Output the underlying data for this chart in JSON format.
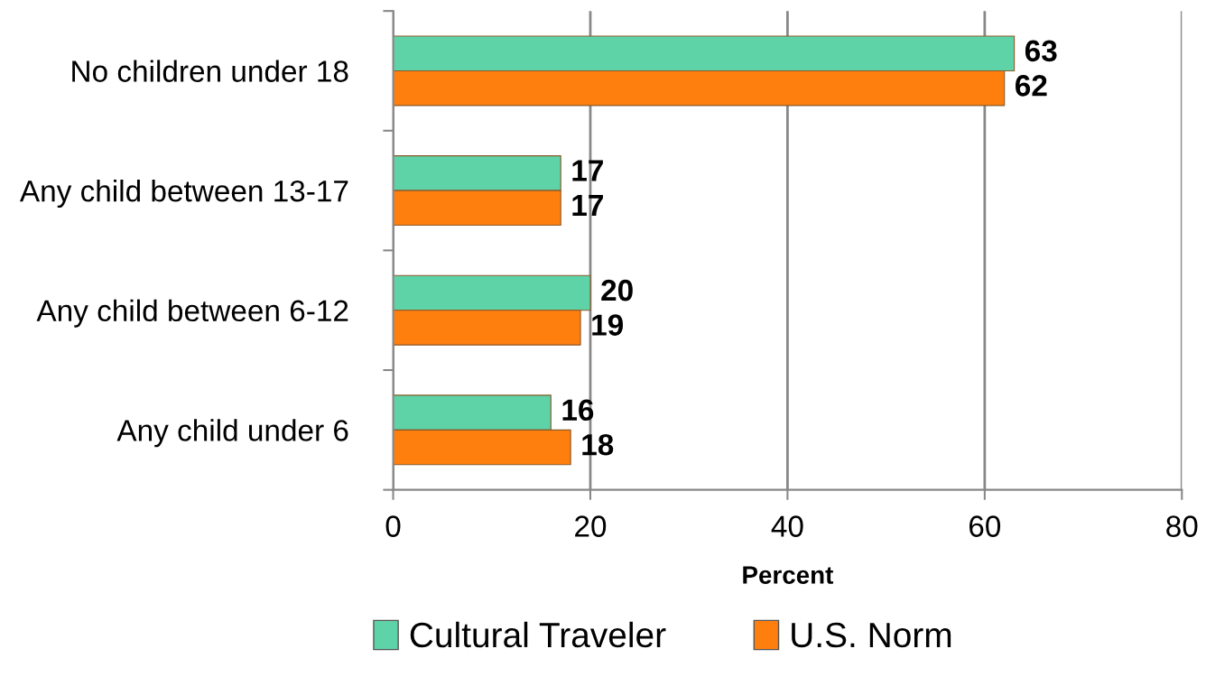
{
  "chart_data": {
    "type": "bar",
    "orientation": "horizontal",
    "xlabel": "Percent",
    "categories": [
      "No children under 18",
      "Any child between 13-17",
      "Any child between 6-12",
      "Any child under 6"
    ],
    "series": [
      {
        "name": "Cultural Traveler",
        "color": "#5fd3a8",
        "values": [
          63,
          17,
          20,
          16
        ]
      },
      {
        "name": "U.S. Norm",
        "color": "#ff7f0e",
        "values": [
          62,
          17,
          19,
          18
        ]
      }
    ],
    "xlim": [
      0,
      80
    ],
    "xticks": [
      0,
      20,
      40,
      60,
      80
    ],
    "grid": "x",
    "legend": "bottom",
    "data_labels": true
  }
}
